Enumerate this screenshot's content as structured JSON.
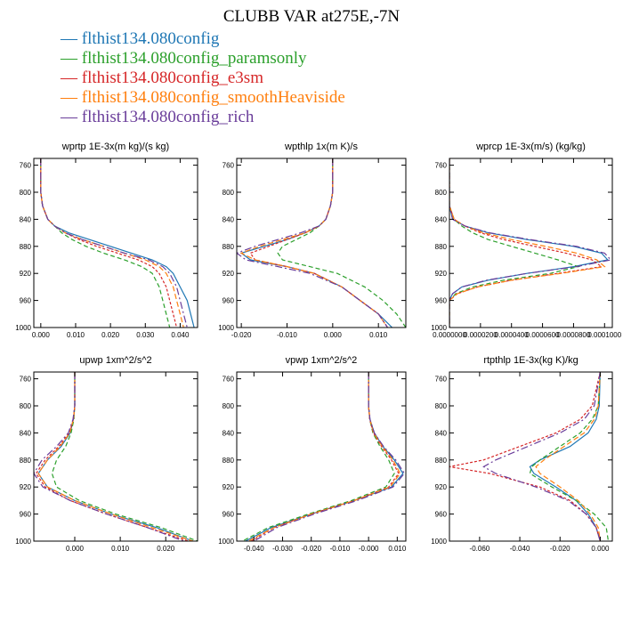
{
  "figure_title": "CLUBB VAR at275E,-7N",
  "legend": [
    {
      "label": "— flthist134.080config",
      "color": "#1f77b4"
    },
    {
      "label": "— flthist134.080config_paramsonly",
      "color": "#2ca02c"
    },
    {
      "label": "— flthist134.080config_e3sm",
      "color": "#d62728"
    },
    {
      "label": "— flthist134.080config_smoothHeaviside",
      "color": "#ff7f0e"
    },
    {
      "label": "— flthist134.080config_rich",
      "color": "#6a3d9a"
    }
  ],
  "chart_data": [
    {
      "type": "line",
      "title": "wprtp  1E-3x(m kg)/(s kg)",
      "xlim": [
        -0.002,
        0.045
      ],
      "ylim": [
        1000,
        750
      ],
      "xticks": [
        0.0,
        0.01,
        0.02,
        0.03,
        0.04
      ],
      "xtick_labels": [
        "0.000",
        "0.010",
        "0.020",
        "0.030",
        "0.040"
      ],
      "yticks": [
        760,
        800,
        840,
        880,
        920,
        960,
        1000
      ],
      "y": [
        750,
        800,
        820,
        840,
        850,
        860,
        870,
        880,
        890,
        900,
        910,
        920,
        940,
        960,
        980,
        1000
      ],
      "series": [
        {
          "name": "flthist134.080config",
          "color": "#1f77b4",
          "dash": "",
          "values": [
            0.0,
            0.0,
            0.0005,
            0.002,
            0.004,
            0.008,
            0.014,
            0.02,
            0.026,
            0.032,
            0.036,
            0.038,
            0.04,
            0.042,
            0.043,
            0.044
          ]
        },
        {
          "name": "flthist134.080config_paramsonly",
          "color": "#2ca02c",
          "dash": "5,3",
          "values": [
            0.0,
            0.0,
            0.0005,
            0.002,
            0.004,
            0.006,
            0.009,
            0.013,
            0.018,
            0.024,
            0.029,
            0.032,
            0.034,
            0.035,
            0.036,
            0.037
          ]
        },
        {
          "name": "flthist134.080config_e3sm",
          "color": "#d62728",
          "dash": "3,2",
          "values": [
            0.0,
            0.0,
            0.0005,
            0.002,
            0.004,
            0.007,
            0.011,
            0.016,
            0.022,
            0.028,
            0.032,
            0.034,
            0.036,
            0.037,
            0.038,
            0.039
          ]
        },
        {
          "name": "flthist134.080config_smoothHeaviside",
          "color": "#ff7f0e",
          "dash": "6,3",
          "values": [
            0.0,
            0.0,
            0.0005,
            0.002,
            0.004,
            0.007,
            0.012,
            0.018,
            0.024,
            0.03,
            0.034,
            0.036,
            0.038,
            0.039,
            0.04,
            0.041
          ]
        },
        {
          "name": "flthist134.080config_rich",
          "color": "#6a3d9a",
          "dash": "8,3,2,3",
          "values": [
            0.0,
            0.0,
            0.0005,
            0.002,
            0.004,
            0.007,
            0.012,
            0.018,
            0.024,
            0.031,
            0.035,
            0.037,
            0.039,
            0.04,
            0.041,
            0.042
          ]
        }
      ]
    },
    {
      "type": "line",
      "title": "wpthlp  1x(m K)/s",
      "xlim": [
        -0.021,
        0.016
      ],
      "ylim": [
        1000,
        750
      ],
      "xticks": [
        -0.02,
        -0.01,
        0.0,
        0.01
      ],
      "xtick_labels": [
        "-0.020",
        "-0.010",
        "0.000",
        "0.010"
      ],
      "yticks": [
        760,
        800,
        840,
        880,
        920,
        960,
        1000
      ],
      "y": [
        750,
        800,
        820,
        840,
        850,
        860,
        870,
        880,
        890,
        900,
        910,
        920,
        940,
        960,
        980,
        1000
      ],
      "series": [
        {
          "name": "flthist134.080config",
          "color": "#1f77b4",
          "dash": "",
          "values": [
            0.0,
            0.0,
            -0.0005,
            -0.0015,
            -0.003,
            -0.006,
            -0.01,
            -0.015,
            -0.02,
            -0.018,
            -0.01,
            -0.004,
            0.002,
            0.006,
            0.01,
            0.013
          ]
        },
        {
          "name": "flthist134.080config_paramsonly",
          "color": "#2ca02c",
          "dash": "5,3",
          "values": [
            0.0,
            0.0,
            -0.0005,
            -0.0015,
            -0.003,
            -0.005,
            -0.008,
            -0.011,
            -0.012,
            -0.011,
            -0.005,
            0.001,
            0.007,
            0.011,
            0.014,
            0.016
          ]
        },
        {
          "name": "flthist134.080config_e3sm",
          "color": "#d62728",
          "dash": "3,2",
          "values": [
            0.0,
            0.0,
            -0.0005,
            -0.0015,
            -0.003,
            -0.006,
            -0.01,
            -0.014,
            -0.018,
            -0.017,
            -0.01,
            -0.004,
            0.002,
            0.006,
            0.01,
            0.012
          ]
        },
        {
          "name": "flthist134.080config_smoothHeaviside",
          "color": "#ff7f0e",
          "dash": "6,3",
          "values": [
            0.0,
            0.0,
            -0.0005,
            -0.0015,
            -0.003,
            -0.006,
            -0.011,
            -0.016,
            -0.02,
            -0.017,
            -0.01,
            -0.004,
            0.002,
            0.006,
            0.01,
            0.012
          ]
        },
        {
          "name": "flthist134.080config_rich",
          "color": "#6a3d9a",
          "dash": "8,3,2,3",
          "values": [
            0.0,
            0.0,
            -0.0005,
            -0.0015,
            -0.003,
            -0.007,
            -0.012,
            -0.017,
            -0.021,
            -0.019,
            -0.012,
            -0.005,
            0.002,
            0.006,
            0.01,
            0.012
          ]
        }
      ]
    },
    {
      "type": "line",
      "title": "wprcp  1E-3x(m/s) (kg/kg)",
      "xlim": [
        0.0,
        0.000105
      ],
      "ylim": [
        1000,
        750
      ],
      "xticks": [
        0.0,
        2e-05,
        4e-05,
        6e-05,
        8e-05,
        0.0001
      ],
      "xtick_labels": [
        "0.0000000",
        "0.0000200",
        "0.0000400",
        "0.0000600",
        "0.0000800",
        "0.0001000"
      ],
      "yticks": [
        760,
        800,
        840,
        880,
        920,
        960,
        1000
      ],
      "y": [
        750,
        820,
        840,
        850,
        860,
        870,
        880,
        890,
        900,
        910,
        920,
        930,
        940,
        950,
        960,
        980,
        1000
      ],
      "series": [
        {
          "name": "flthist134.080config",
          "color": "#1f77b4",
          "dash": "",
          "values": [
            0.0,
            0.0,
            2e-06,
            1e-05,
            2.5e-05,
            5e-05,
            8e-05,
            9.8e-05,
            0.000102,
            8e-05,
            5e-05,
            2.5e-05,
            8e-06,
            2e-06,
            0.0,
            0.0,
            0.0
          ]
        },
        {
          "name": "flthist134.080config_paramsonly",
          "color": "#2ca02c",
          "dash": "5,3",
          "values": [
            0.0,
            0.0,
            3e-06,
            8e-06,
            1.5e-05,
            2.5e-05,
            4e-05,
            5.5e-05,
            7e-05,
            8.3e-05,
            6.5e-05,
            3.5e-05,
            1.5e-05,
            4e-06,
            0.0,
            0.0,
            0.0
          ]
        },
        {
          "name": "flthist134.080config_e3sm",
          "color": "#d62728",
          "dash": "3,2",
          "values": [
            0.0,
            0.0,
            3e-06,
            1e-05,
            2e-05,
            3.5e-05,
            5.5e-05,
            7.5e-05,
            9.2e-05,
            9.8e-05,
            7e-05,
            4e-05,
            1.8e-05,
            5e-06,
            0.0,
            0.0,
            0.0
          ]
        },
        {
          "name": "flthist134.080config_smoothHeaviside",
          "color": "#ff7f0e",
          "dash": "6,3",
          "values": [
            0.0,
            0.0,
            3e-06,
            1e-05,
            2.2e-05,
            4e-05,
            6.2e-05,
            8.2e-05,
            9.5e-05,
            0.0001,
            7.2e-05,
            4e-05,
            1.8e-05,
            5e-06,
            0.0,
            0.0,
            0.0
          ]
        },
        {
          "name": "flthist134.080config_rich",
          "color": "#6a3d9a",
          "dash": "8,3,2,3",
          "values": [
            0.0,
            0.0,
            2e-06,
            1e-05,
            2.6e-05,
            5.2e-05,
            8.2e-05,
            0.0001,
            0.000104,
            8.2e-05,
            5e-05,
            2.4e-05,
            8e-06,
            2e-06,
            0.0,
            0.0,
            0.0
          ]
        }
      ]
    },
    {
      "type": "line",
      "title": "upwp  1xm^2/s^2",
      "xlim": [
        -0.009,
        0.027
      ],
      "ylim": [
        1000,
        750
      ],
      "xticks": [
        0.0,
        0.01,
        0.02
      ],
      "xtick_labels": [
        "0.000",
        "0.010",
        "0.020"
      ],
      "yticks": [
        760,
        800,
        840,
        880,
        920,
        960,
        1000
      ],
      "y": [
        750,
        800,
        820,
        840,
        860,
        880,
        900,
        920,
        940,
        960,
        980,
        1000
      ],
      "series": [
        {
          "name": "flthist134.080config",
          "color": "#1f77b4",
          "dash": "",
          "values": [
            0.0,
            0.0,
            -0.0003,
            -0.001,
            -0.003,
            -0.006,
            -0.008,
            -0.006,
            0.0,
            0.008,
            0.018,
            0.026
          ]
        },
        {
          "name": "flthist134.080config_paramsonly",
          "color": "#2ca02c",
          "dash": "5,3",
          "values": [
            0.0,
            0.0,
            -0.0002,
            -0.0008,
            -0.002,
            -0.004,
            -0.005,
            -0.004,
            0.001,
            0.009,
            0.019,
            0.027
          ]
        },
        {
          "name": "flthist134.080config_e3sm",
          "color": "#d62728",
          "dash": "3,2",
          "values": [
            0.0,
            0.0,
            -0.0003,
            -0.0012,
            -0.0035,
            -0.0065,
            -0.0085,
            -0.0065,
            -0.001,
            0.007,
            0.016,
            0.025
          ]
        },
        {
          "name": "flthist134.080config_smoothHeaviside",
          "color": "#ff7f0e",
          "dash": "6,3",
          "values": [
            0.0,
            0.0,
            -0.0003,
            -0.0011,
            -0.0032,
            -0.006,
            -0.008,
            -0.006,
            0.0,
            0.008,
            0.017,
            0.026
          ]
        },
        {
          "name": "flthist134.080config_rich",
          "color": "#6a3d9a",
          "dash": "8,3,2,3",
          "values": [
            0.0,
            0.0,
            -0.0004,
            -0.0014,
            -0.004,
            -0.0072,
            -0.009,
            -0.007,
            -0.001,
            0.007,
            0.016,
            0.024
          ]
        }
      ]
    },
    {
      "type": "line",
      "title": "vpwp  1xm^2/s^2",
      "xlim": [
        -0.046,
        0.013
      ],
      "ylim": [
        1000,
        750
      ],
      "xticks": [
        -0.04,
        -0.03,
        -0.02,
        -0.01,
        0.0,
        0.01
      ],
      "xtick_labels": [
        "-0.040",
        "-0.030",
        "-0.020",
        "-0.010",
        "-0.000",
        "0.010"
      ],
      "yticks": [
        760,
        800,
        840,
        880,
        920,
        960,
        1000
      ],
      "y": [
        750,
        800,
        820,
        840,
        860,
        880,
        900,
        920,
        940,
        960,
        980,
        1000
      ],
      "series": [
        {
          "name": "flthist134.080config",
          "color": "#1f77b4",
          "dash": "",
          "values": [
            0.0,
            0.0,
            0.0005,
            0.002,
            0.005,
            0.009,
            0.012,
            0.008,
            -0.005,
            -0.02,
            -0.034,
            -0.043
          ]
        },
        {
          "name": "flthist134.080config_paramsonly",
          "color": "#2ca02c",
          "dash": "5,3",
          "values": [
            0.0,
            0.0,
            0.0004,
            0.0015,
            0.004,
            0.007,
            0.009,
            0.006,
            -0.006,
            -0.021,
            -0.035,
            -0.044
          ]
        },
        {
          "name": "flthist134.080config_e3sm",
          "color": "#d62728",
          "dash": "3,2",
          "values": [
            0.0,
            0.0,
            0.0004,
            0.0017,
            0.0045,
            0.008,
            0.0105,
            0.007,
            -0.005,
            -0.02,
            -0.033,
            -0.041
          ]
        },
        {
          "name": "flthist134.080config_smoothHeaviside",
          "color": "#ff7f0e",
          "dash": "6,3",
          "values": [
            0.0,
            0.0,
            0.0005,
            0.0018,
            0.0048,
            0.0085,
            0.011,
            0.0075,
            -0.005,
            -0.02,
            -0.033,
            -0.042
          ]
        },
        {
          "name": "flthist134.080config_rich",
          "color": "#6a3d9a",
          "dash": "8,3,2,3",
          "values": [
            0.0,
            0.0,
            0.0005,
            0.002,
            0.0052,
            0.0095,
            0.0125,
            0.0085,
            -0.004,
            -0.019,
            -0.032,
            -0.04
          ]
        }
      ]
    },
    {
      "type": "line",
      "title": "rtpthlp  1E-3x(kg K)/kg",
      "xlim": [
        -0.075,
        0.006
      ],
      "ylim": [
        1000,
        750
      ],
      "xticks": [
        -0.06,
        -0.04,
        -0.02,
        0.0
      ],
      "xtick_labels": [
        "-0.060",
        "-0.040",
        "-0.020",
        "0.000"
      ],
      "yticks": [
        760,
        800,
        840,
        880,
        920,
        960,
        1000
      ],
      "y": [
        750,
        800,
        820,
        840,
        860,
        880,
        890,
        900,
        920,
        940,
        960,
        980,
        1000
      ],
      "series": [
        {
          "name": "flthist134.080config",
          "color": "#1f77b4",
          "dash": "",
          "values": [
            0.0,
            -0.0005,
            -0.002,
            -0.006,
            -0.015,
            -0.03,
            -0.035,
            -0.033,
            -0.022,
            -0.012,
            -0.006,
            -0.002,
            0.0
          ]
        },
        {
          "name": "flthist134.080config_paramsonly",
          "color": "#2ca02c",
          "dash": "5,3",
          "values": [
            0.0,
            -0.001,
            -0.004,
            -0.01,
            -0.02,
            -0.03,
            -0.034,
            -0.035,
            -0.024,
            -0.012,
            -0.003,
            0.003,
            0.004
          ]
        },
        {
          "name": "flthist134.080config_e3sm",
          "color": "#d62728",
          "dash": "3,2",
          "values": [
            0.0,
            -0.004,
            -0.01,
            -0.022,
            -0.04,
            -0.058,
            -0.075,
            -0.055,
            -0.03,
            -0.015,
            -0.007,
            -0.002,
            0.0
          ]
        },
        {
          "name": "flthist134.080config_smoothHeaviside",
          "color": "#ff7f0e",
          "dash": "6,3",
          "values": [
            0.0,
            -0.001,
            -0.003,
            -0.008,
            -0.018,
            -0.028,
            -0.032,
            -0.03,
            -0.02,
            -0.011,
            -0.005,
            -0.001,
            0.0
          ]
        },
        {
          "name": "flthist134.080config_rich",
          "color": "#6a3d9a",
          "dash": "8,3,2,3",
          "values": [
            0.0,
            -0.003,
            -0.008,
            -0.02,
            -0.036,
            -0.052,
            -0.058,
            -0.052,
            -0.032,
            -0.016,
            -0.007,
            -0.002,
            0.0
          ]
        }
      ]
    }
  ]
}
